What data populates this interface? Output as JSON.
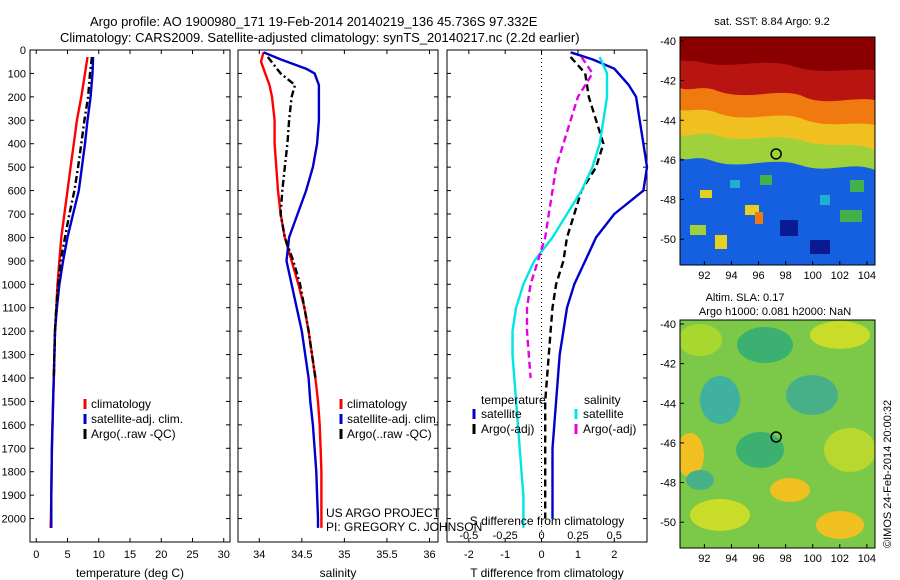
{
  "header": {
    "line1": "Argo profile: AO 1900980_171 19-Feb-2014 20140219_136 45.736S 97.332E",
    "line2": "Climatology: CARS2009. Satellite-adjusted climatology: synTS_20140217.nc (2.2d earlier)"
  },
  "colors": {
    "climatology": "#ff0000",
    "satellite": "#0000cc",
    "argo": "#000000",
    "sat_salinity": "#00e5e5",
    "argo_salinity": "#e600e6"
  },
  "chart_data": [
    {
      "type": "line",
      "panel": "temperature",
      "xlabel": "temperature (deg C)",
      "xlim": [
        -1,
        31
      ],
      "xticks": [
        0,
        5,
        10,
        15,
        20,
        25,
        30
      ],
      "ylim": [
        0,
        2100
      ],
      "yticks": [
        0,
        100,
        200,
        300,
        400,
        500,
        600,
        700,
        800,
        900,
        1000,
        1100,
        1200,
        1300,
        1400,
        1500,
        1600,
        1700,
        1800,
        1900,
        2000
      ],
      "legend": [
        "climatology",
        "satellite-adj. clim.",
        "Argo(..raw -QC)"
      ],
      "series": [
        {
          "name": "climatology",
          "style": "solid",
          "color": "#ff0000",
          "points": [
            [
              8.2,
              30
            ],
            [
              7.8,
              100
            ],
            [
              7.2,
              200
            ],
            [
              6.5,
              300
            ],
            [
              6.0,
              400
            ],
            [
              5.5,
              500
            ],
            [
              5.0,
              600
            ],
            [
              4.5,
              700
            ],
            [
              4.0,
              800
            ],
            [
              3.7,
              900
            ],
            [
              3.4,
              1000
            ],
            [
              3.2,
              1100
            ],
            [
              3.0,
              1200
            ],
            [
              2.9,
              1300
            ],
            [
              2.8,
              1400
            ],
            [
              2.7,
              1500
            ],
            [
              2.6,
              1600
            ],
            [
              2.5,
              1700
            ],
            [
              2.45,
              1800
            ],
            [
              2.4,
              1900
            ],
            [
              2.35,
              2000
            ],
            [
              2.3,
              2040
            ]
          ]
        },
        {
          "name": "satellite-adj. clim.",
          "style": "solid",
          "color": "#0000cc",
          "points": [
            [
              9.1,
              30
            ],
            [
              9.0,
              100
            ],
            [
              8.7,
              200
            ],
            [
              8.2,
              300
            ],
            [
              7.8,
              400
            ],
            [
              7.3,
              500
            ],
            [
              6.8,
              600
            ],
            [
              5.9,
              700
            ],
            [
              5.0,
              800
            ],
            [
              4.3,
              900
            ],
            [
              3.7,
              1000
            ],
            [
              3.3,
              1100
            ],
            [
              3.0,
              1200
            ],
            [
              2.9,
              1300
            ],
            [
              2.8,
              1400
            ],
            [
              2.7,
              1500
            ],
            [
              2.6,
              1600
            ],
            [
              2.5,
              1700
            ],
            [
              2.45,
              1800
            ],
            [
              2.4,
              1900
            ],
            [
              2.4,
              2000
            ],
            [
              2.4,
              2040
            ]
          ]
        },
        {
          "name": "Argo(..raw -QC)",
          "style": "dashdot",
          "color": "#000000",
          "points": [
            [
              8.9,
              30
            ],
            [
              8.6,
              100
            ],
            [
              8.3,
              200
            ],
            [
              7.7,
              300
            ],
            [
              7.2,
              400
            ],
            [
              6.7,
              500
            ],
            [
              6.1,
              600
            ],
            [
              5.3,
              700
            ],
            [
              4.6,
              800
            ],
            [
              3.9,
              900
            ],
            [
              3.5,
              1000
            ],
            [
              3.2,
              1100
            ],
            [
              3.0,
              1200
            ],
            [
              2.9,
              1300
            ],
            [
              2.8,
              1400
            ]
          ]
        }
      ]
    },
    {
      "type": "line",
      "panel": "salinity",
      "xlabel": "salinity",
      "xlim": [
        33.75,
        36.1
      ],
      "xticks": [
        34,
        34.5,
        35,
        35.5,
        36
      ],
      "ylim": [
        0,
        2100
      ],
      "legend": [
        "climatology",
        "satellite-adj. clim.",
        "Argo(..raw -QC)"
      ],
      "series": [
        {
          "name": "climatology",
          "style": "solid",
          "color": "#ff0000",
          "points": [
            [
              34.05,
              10
            ],
            [
              34.02,
              50
            ],
            [
              34.12,
              150
            ],
            [
              34.15,
              200
            ],
            [
              34.18,
              300
            ],
            [
              34.18,
              400
            ],
            [
              34.2,
              500
            ],
            [
              34.22,
              600
            ],
            [
              34.25,
              700
            ],
            [
              34.3,
              800
            ],
            [
              34.38,
              900
            ],
            [
              34.46,
              1000
            ],
            [
              34.53,
              1100
            ],
            [
              34.58,
              1200
            ],
            [
              34.62,
              1300
            ],
            [
              34.66,
              1400
            ],
            [
              34.69,
              1500
            ],
            [
              34.71,
              1600
            ],
            [
              34.72,
              1700
            ],
            [
              34.73,
              1800
            ],
            [
              34.73,
              1900
            ],
            [
              34.73,
              2000
            ],
            [
              34.73,
              2040
            ]
          ]
        },
        {
          "name": "satellite-adj. clim.",
          "style": "solid",
          "color": "#0000cc",
          "points": [
            [
              34.05,
              10
            ],
            [
              34.25,
              40
            ],
            [
              34.55,
              80
            ],
            [
              34.65,
              100
            ],
            [
              34.7,
              150
            ],
            [
              34.7,
              200
            ],
            [
              34.7,
              300
            ],
            [
              34.68,
              400
            ],
            [
              34.63,
              500
            ],
            [
              34.55,
              600
            ],
            [
              34.45,
              700
            ],
            [
              34.35,
              800
            ],
            [
              34.32,
              900
            ],
            [
              34.38,
              1000
            ],
            [
              34.44,
              1100
            ],
            [
              34.5,
              1200
            ],
            [
              34.54,
              1300
            ],
            [
              34.58,
              1400
            ],
            [
              34.6,
              1500
            ],
            [
              34.63,
              1600
            ],
            [
              34.65,
              1700
            ],
            [
              34.67,
              1800
            ],
            [
              34.68,
              1900
            ],
            [
              34.69,
              2000
            ],
            [
              34.69,
              2040
            ]
          ]
        },
        {
          "name": "Argo(..raw -QC)",
          "style": "dashdot",
          "color": "#000000",
          "points": [
            [
              34.1,
              30
            ],
            [
              34.25,
              100
            ],
            [
              34.42,
              150
            ],
            [
              34.38,
              200
            ],
            [
              34.35,
              300
            ],
            [
              34.33,
              400
            ],
            [
              34.3,
              500
            ],
            [
              34.27,
              600
            ],
            [
              34.25,
              700
            ],
            [
              34.3,
              800
            ],
            [
              34.4,
              900
            ],
            [
              34.48,
              1000
            ],
            [
              34.53,
              1100
            ],
            [
              34.58,
              1200
            ],
            [
              34.62,
              1300
            ],
            [
              34.66,
              1400
            ]
          ]
        }
      ]
    },
    {
      "type": "line",
      "panel": "difference",
      "xlabel": "T difference from climatology",
      "xlabel_top": "S difference from climatology",
      "xlim": [
        -2.6,
        2.9
      ],
      "xticks": [
        -2,
        -1,
        0,
        1,
        2
      ],
      "sticks": [
        "-0.5",
        "-0.25",
        "0",
        "0.25",
        "0.5"
      ],
      "ylim": [
        0,
        2100
      ],
      "legend_temperature_title": "temperature",
      "legend_salinity_title": "salinity",
      "legend_satellite": "satellite",
      "legend_argo": "Argo(-adj)",
      "series": [
        {
          "name": "temperature satellite",
          "style": "solid",
          "color": "#0000cc",
          "points": [
            [
              0.8,
              10
            ],
            [
              1.4,
              40
            ],
            [
              2.0,
              80
            ],
            [
              2.4,
              150
            ],
            [
              2.6,
              200
            ],
            [
              2.7,
              300
            ],
            [
              2.8,
              400
            ],
            [
              2.9,
              500
            ],
            [
              2.8,
              600
            ],
            [
              2.0,
              700
            ],
            [
              1.5,
              800
            ],
            [
              1.2,
              900
            ],
            [
              0.9,
              1000
            ],
            [
              0.7,
              1100
            ],
            [
              0.6,
              1200
            ],
            [
              0.5,
              1300
            ],
            [
              0.45,
              1400
            ],
            [
              0.4,
              1500
            ],
            [
              0.35,
              1600
            ],
            [
              0.3,
              1700
            ],
            [
              0.3,
              1800
            ],
            [
              0.3,
              1900
            ],
            [
              0.3,
              2000
            ]
          ]
        },
        {
          "name": "temperature Argo(-adj)",
          "style": "dashed",
          "color": "#000000",
          "points": [
            [
              0.8,
              30
            ],
            [
              1.2,
              100
            ],
            [
              1.3,
              200
            ],
            [
              1.5,
              300
            ],
            [
              1.7,
              400
            ],
            [
              1.5,
              500
            ],
            [
              1.1,
              600
            ],
            [
              0.9,
              700
            ],
            [
              0.7,
              800
            ],
            [
              0.6,
              900
            ],
            [
              0.4,
              1000
            ],
            [
              0.3,
              1100
            ],
            [
              0.25,
              1200
            ],
            [
              0.2,
              1300
            ],
            [
              0.15,
              1400
            ],
            [
              0.1,
              1500
            ],
            [
              0.1,
              1600
            ],
            [
              0.1,
              1700
            ],
            [
              0.1,
              1800
            ],
            [
              0.1,
              1900
            ],
            [
              0.1,
              2000
            ]
          ]
        },
        {
          "name": "salinity satellite",
          "style": "solid",
          "color": "#00e5e5",
          "points": [
            [
              1.6,
              30
            ],
            [
              1.8,
              100
            ],
            [
              1.8,
              200
            ],
            [
              1.7,
              300
            ],
            [
              1.6,
              400
            ],
            [
              1.4,
              500
            ],
            [
              1.1,
              600
            ],
            [
              0.7,
              700
            ],
            [
              0.3,
              800
            ],
            [
              -0.2,
              900
            ],
            [
              -0.5,
              1000
            ],
            [
              -0.7,
              1100
            ],
            [
              -0.8,
              1200
            ],
            [
              -0.8,
              1300
            ],
            [
              -0.75,
              1400
            ],
            [
              -0.7,
              1500
            ],
            [
              -0.65,
              1600
            ],
            [
              -0.6,
              1700
            ],
            [
              -0.55,
              1800
            ],
            [
              -0.5,
              1900
            ],
            [
              -0.5,
              2000
            ],
            [
              -0.5,
              2040
            ]
          ]
        },
        {
          "name": "salinity Argo(-adj)",
          "style": "dashed",
          "color": "#e600e6",
          "points": [
            [
              1.1,
              30
            ],
            [
              1.4,
              100
            ],
            [
              1.0,
              200
            ],
            [
              0.8,
              300
            ],
            [
              0.6,
              400
            ],
            [
              0.4,
              500
            ],
            [
              0.3,
              600
            ],
            [
              0.2,
              700
            ],
            [
              0.1,
              800
            ],
            [
              -0.1,
              900
            ],
            [
              -0.3,
              1000
            ],
            [
              -0.4,
              1100
            ],
            [
              -0.4,
              1200
            ],
            [
              -0.35,
              1300
            ],
            [
              -0.3,
              1400
            ]
          ]
        }
      ]
    },
    {
      "type": "heatmap",
      "panel": "sst_map",
      "title": "sat. SST: 8.84 Argo: 9.2",
      "xticks": [
        "92",
        "94",
        "96",
        "98",
        "100",
        "102",
        "104"
      ],
      "yticks": [
        "-40",
        "-42",
        "-44",
        "-46",
        "-48",
        "-50"
      ],
      "xlim": [
        90.2,
        104.6
      ],
      "ylim": [
        -51.3,
        -39.8
      ],
      "argo_position": [
        97.3,
        -45.7
      ]
    },
    {
      "type": "heatmap",
      "panel": "sla_map",
      "title": "Altim. SLA: 0.17",
      "subtitle": "Argo h1000: 0.081 h2000: NaN",
      "xticks": [
        "92",
        "94",
        "96",
        "98",
        "100",
        "102",
        "104"
      ],
      "yticks": [
        "-40",
        "-42",
        "-44",
        "-46",
        "-48",
        "-50"
      ],
      "xlim": [
        90.2,
        104.6
      ],
      "ylim": [
        -51.3,
        -39.8
      ],
      "argo_position": [
        97.3,
        -45.7
      ]
    }
  ],
  "credits": {
    "project": "US ARGO PROJECT",
    "pi": "PI: GREGORY C. JOHNSON"
  },
  "stamp": "©IMOS 24-Feb-2014 20:00:32"
}
